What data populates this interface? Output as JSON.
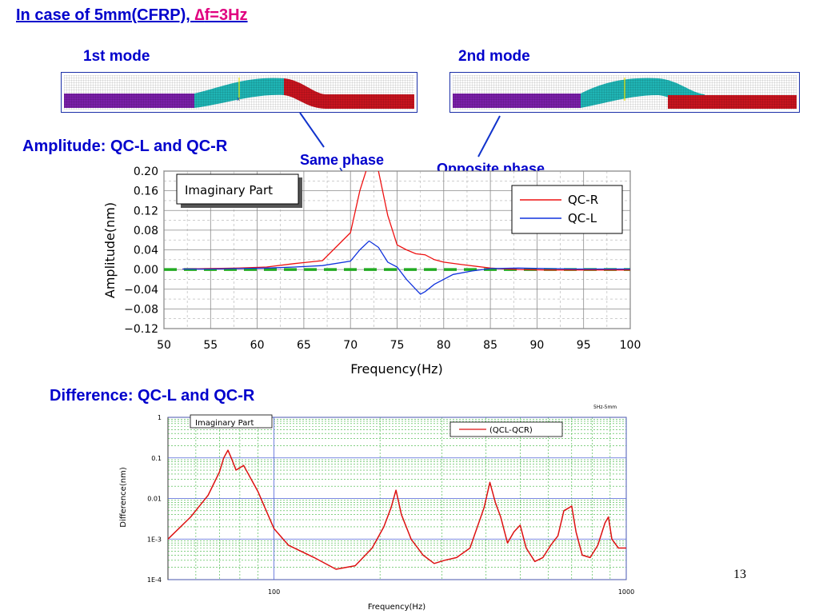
{
  "slide": {
    "title_prefix": "In case of 5mm(CFRP), ",
    "title_highlight_symbol": "∆",
    "title_highlight_text": "f=3Hz",
    "mode1_label": "1st mode",
    "mode2_label": "2nd mode",
    "amp_heading": "Amplitude: QC-L and QC-R",
    "same_phase": "Same phase",
    "opposite_phase": "Opposite phase",
    "diff_heading": "Difference: QC-L and QC-R",
    "page_number": "13",
    "colors": {
      "heading": "#0000cc",
      "highlight": "#e0007f",
      "qcr": "#ee1111",
      "qcl": "#1133dd",
      "zero_line": "#22aa22",
      "segment_left": "#7a1fa8",
      "segment_mid": "#1fb5b5",
      "segment_right": "#c8141e"
    }
  },
  "chart_data": [
    {
      "type": "line",
      "annotation": "Imaginary Part",
      "xlabel": "Frequency(Hz)",
      "ylabel": "Amplitude(nm)",
      "xlim": [
        50,
        100
      ],
      "ylim": [
        -0.12,
        0.2
      ],
      "xticks": [
        "50",
        "55",
        "60",
        "65",
        "70",
        "75",
        "80",
        "85",
        "90",
        "95",
        "100"
      ],
      "yticks": [
        "0.20",
        "0.16",
        "0.12",
        "0.08",
        "0.04",
        "0.00",
        "−0.04",
        "−0.08",
        "−0.12"
      ],
      "legend_position": "top-right",
      "grid": true,
      "series": [
        {
          "name": "QC-R",
          "color": "#ee1111",
          "x": [
            52,
            55,
            58,
            61,
            64,
            67,
            70,
            71,
            72,
            73,
            74,
            75,
            76,
            77,
            78,
            79,
            80,
            82,
            85,
            88,
            91,
            94,
            97,
            100
          ],
          "y": [
            0.001,
            0.002,
            0.003,
            0.005,
            0.012,
            0.018,
            0.075,
            0.16,
            0.22,
            0.2,
            0.11,
            0.05,
            0.04,
            0.032,
            0.03,
            0.02,
            0.015,
            0.01,
            0.003,
            0.0,
            -0.001,
            -0.001,
            -0.001,
            -0.001
          ]
        },
        {
          "name": "QC-L",
          "color": "#1133dd",
          "x": [
            52,
            55,
            58,
            61,
            64,
            67,
            70,
            71,
            72,
            73,
            74,
            75,
            76,
            77,
            77.5,
            78,
            79,
            80,
            81,
            83,
            85,
            88,
            91,
            94,
            97,
            100
          ],
          "y": [
            0.001,
            0.001,
            0.002,
            0.003,
            0.005,
            0.008,
            0.017,
            0.04,
            0.058,
            0.045,
            0.015,
            0.005,
            -0.02,
            -0.04,
            -0.05,
            -0.045,
            -0.03,
            -0.02,
            -0.01,
            -0.003,
            0.002,
            0.003,
            0.002,
            0.001,
            0.001,
            0.001
          ]
        }
      ],
      "reference_line": {
        "y": 0.0,
        "style": "dashed",
        "color": "#22aa22"
      }
    },
    {
      "type": "line",
      "annotation": "Imaginary Part",
      "corner_label": "5Hz-5mm",
      "xlabel": "Frequency(Hz)",
      "ylabel": "Difference(nm)",
      "xscale": "log",
      "yscale": "log",
      "xlim": [
        50,
        1000
      ],
      "ylim": [
        0.0001,
        1
      ],
      "xticks": [
        {
          "value": 100,
          "label": "100"
        },
        {
          "value": 1000,
          "label": "1000"
        }
      ],
      "yticks": [
        {
          "value": 1,
          "label": "1"
        },
        {
          "value": 0.1,
          "label": "0.1"
        },
        {
          "value": 0.01,
          "label": "0.01"
        },
        {
          "value": 0.001,
          "label": "1E-3"
        },
        {
          "value": 0.0001,
          "label": "1E-4"
        }
      ],
      "legend_position": "top-right",
      "grid": true,
      "series": [
        {
          "name": "(QCL-QCR)",
          "color": "#dd1111",
          "x": [
            50,
            58,
            65,
            70,
            72,
            74,
            76,
            78,
            82,
            90,
            100,
            110,
            130,
            150,
            170,
            190,
            205,
            215,
            222,
            230,
            245,
            265,
            285,
            305,
            330,
            360,
            395,
            410,
            425,
            440,
            460,
            480,
            500,
            520,
            550,
            580,
            610,
            640,
            665,
            690,
            700,
            720,
            750,
            790,
            830,
            870,
            890,
            910,
            950,
            1000
          ],
          "y": [
            0.001,
            0.0035,
            0.012,
            0.045,
            0.1,
            0.155,
            0.09,
            0.05,
            0.065,
            0.015,
            0.0018,
            0.0007,
            0.00035,
            0.00018,
            0.00022,
            0.0006,
            0.002,
            0.006,
            0.016,
            0.004,
            0.001,
            0.0004,
            0.00025,
            0.0003,
            0.00035,
            0.0006,
            0.006,
            0.025,
            0.008,
            0.0035,
            0.0008,
            0.0015,
            0.0022,
            0.0006,
            0.00028,
            0.00035,
            0.0007,
            0.0012,
            0.005,
            0.006,
            0.0065,
            0.0015,
            0.0004,
            0.00035,
            0.0007,
            0.0025,
            0.0035,
            0.001,
            0.0006,
            0.0006
          ]
        }
      ]
    }
  ]
}
